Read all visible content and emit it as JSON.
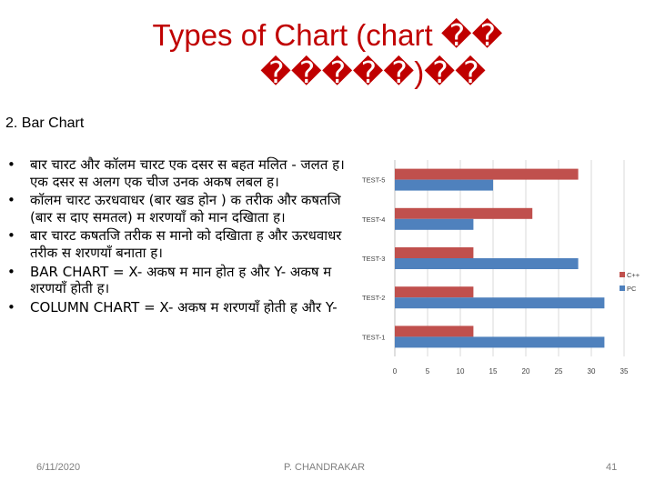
{
  "slide": {
    "title_line1": "Types of Chart (chart ��",
    "title_line2": "�����)��",
    "subtitle": "2. Bar Chart",
    "bullets": [
      "बार चारट और कॉलम चारट एक दसर स बहत मलित - जलत ह। एक दसर स अलग एक चीज उनक अकष लबल ह।",
      "कॉलम चारट ऊरधवाधर (बार खड होन ) क तरीक और कषतजि (बार स दाए समतल) म शरणयाँ को मान दखिाता ह।",
      "बार चारट कषतजि तरीक स मानो को दखिाता ह और ऊरधवाधर तरीक स शरणयाँ बनाता ह।",
      "BAR CHART = X- अकष म मान होत ह और Y- अकष म शरणयाँ होती ह।",
      "COLUMN CHART = X- अकष म शरणयाँ होती ह और Y-"
    ],
    "bullet_symbol": "•",
    "footer_left": "6/11/2020",
    "footer_center": "P. CHANDRAKAR",
    "page_number": "41"
  },
  "chart_data": {
    "type": "bar",
    "orientation": "horizontal",
    "categories": [
      "TEST-1",
      "TEST-2",
      "TEST-3",
      "TEST-4",
      "TEST-5"
    ],
    "series": [
      {
        "name": "C++",
        "color": "#c0504d",
        "values": [
          12,
          12,
          12,
          21,
          28
        ]
      },
      {
        "name": "PC",
        "color": "#4f81bd",
        "values": [
          32,
          32,
          28,
          12,
          15
        ]
      }
    ],
    "xlim": [
      0,
      35
    ],
    "xticks": [
      0,
      5,
      10,
      15,
      20,
      25,
      30,
      35
    ],
    "grid": true,
    "legend": "right"
  }
}
